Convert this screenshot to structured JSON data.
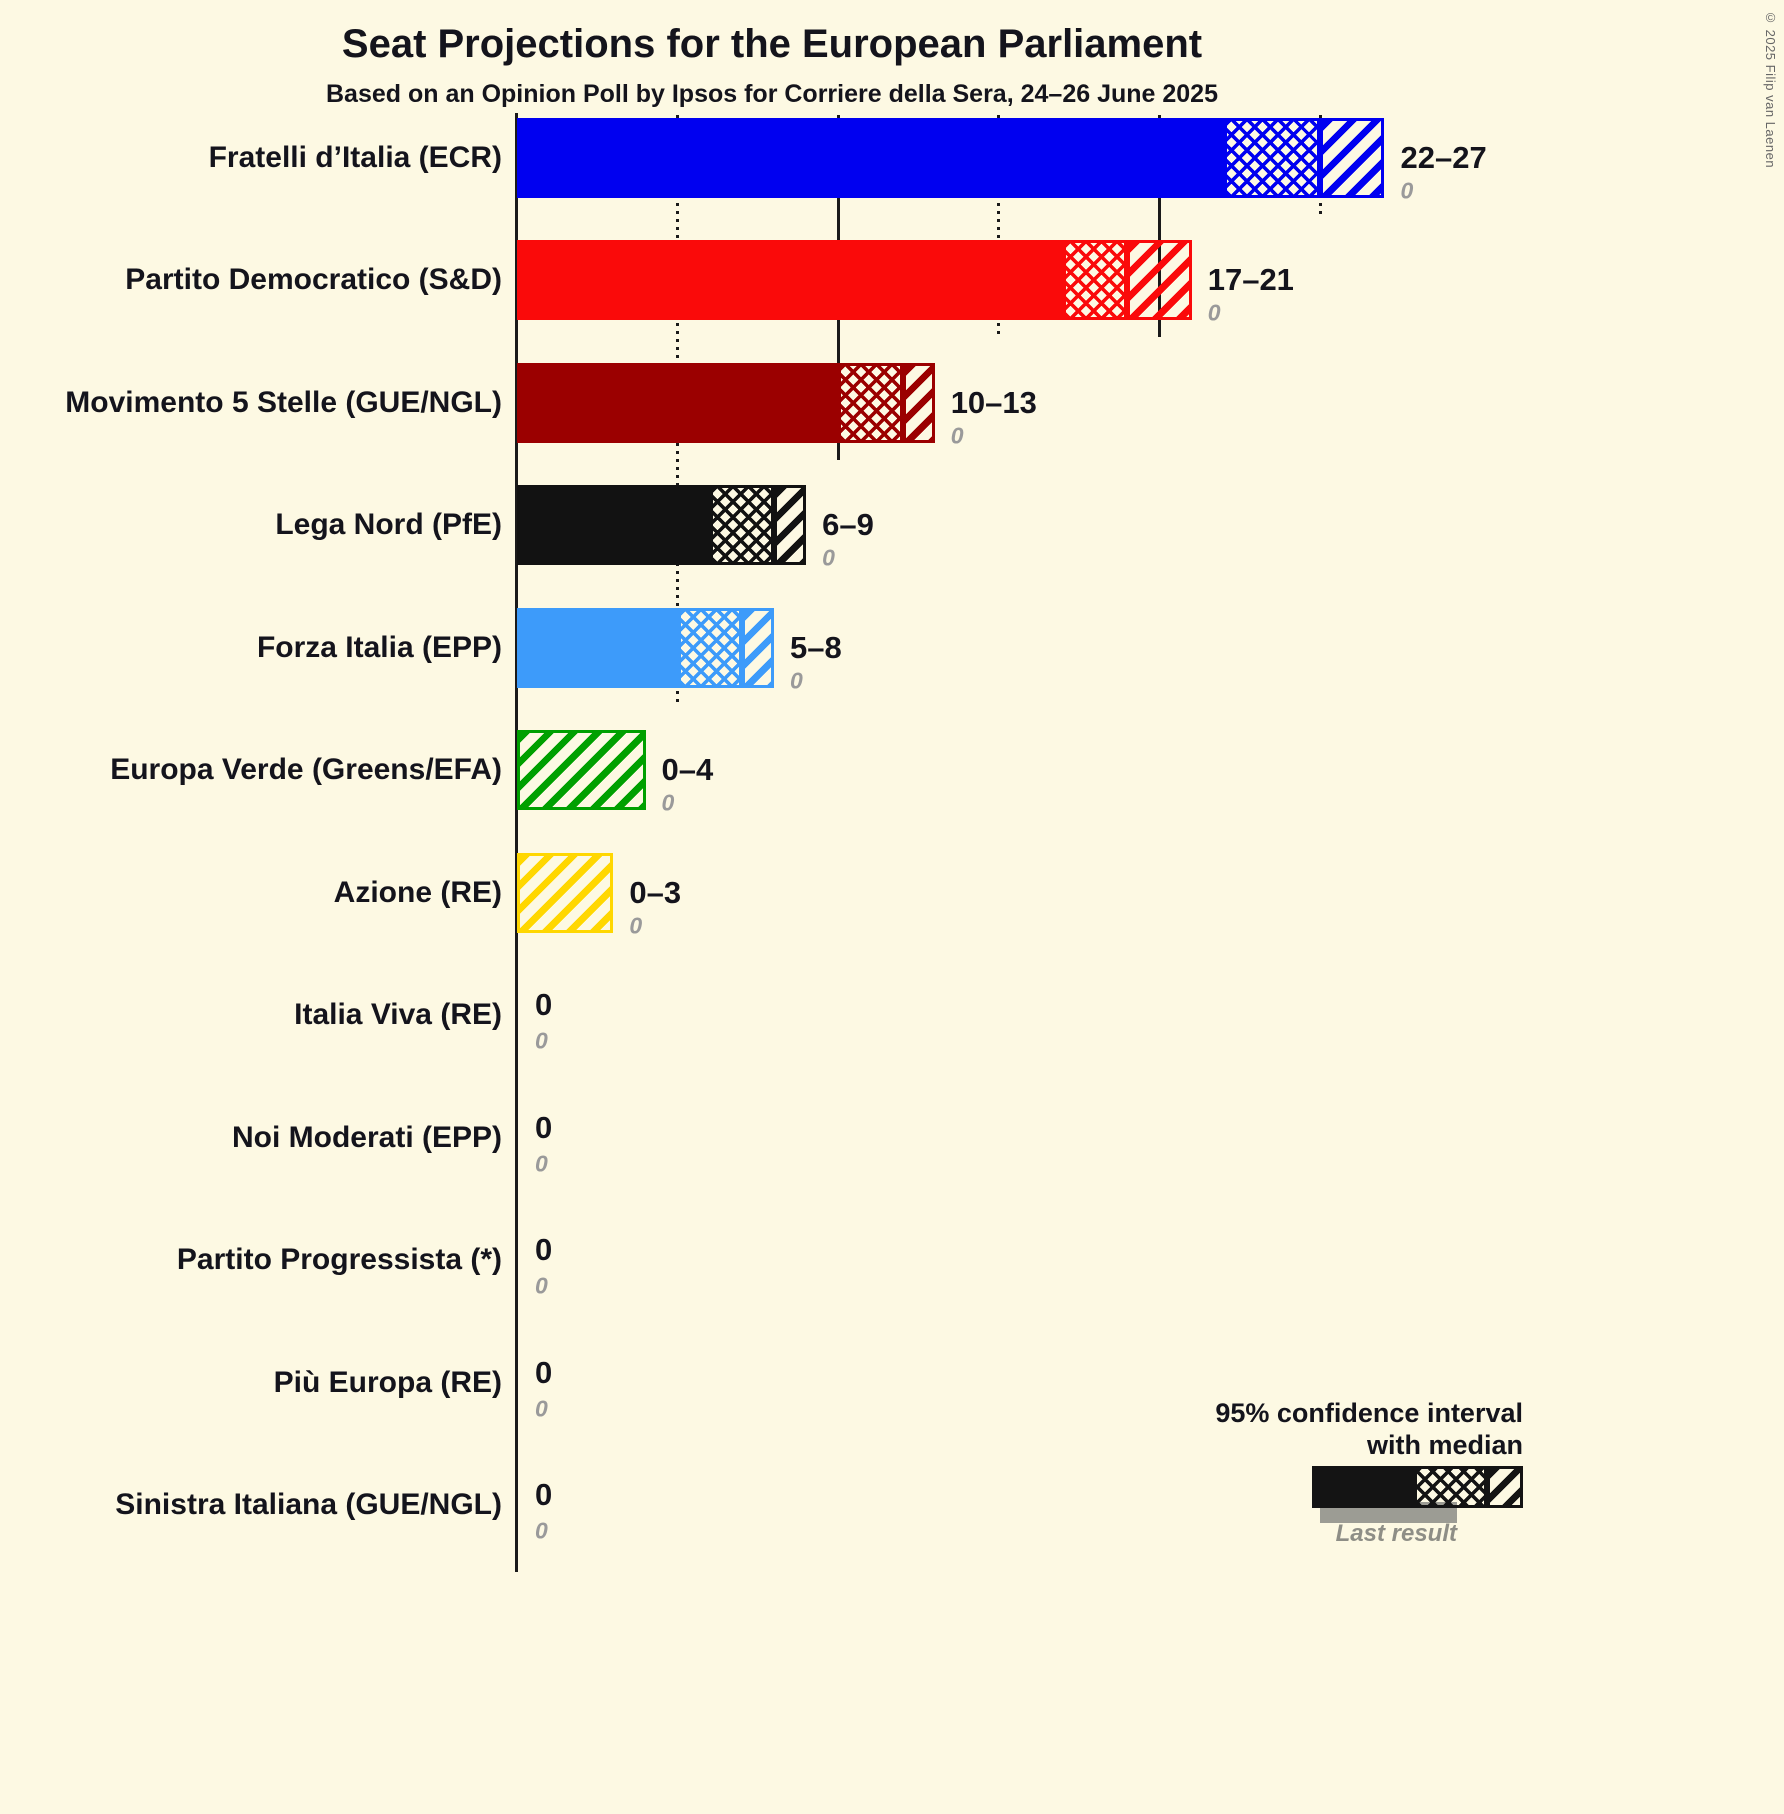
{
  "title": "Seat Projections for the European Parliament",
  "subtitle": "Based on an Opinion Poll by Ipsos for Corriere della Sera, 24–26 June 2025",
  "copyright": "© 2025 Filip van Laenen",
  "legend": {
    "ci_line1": "95% confidence interval",
    "ci_line2": "with median",
    "last_result_label": "Last result"
  },
  "chart_data": {
    "type": "bar",
    "orientation": "horizontal",
    "title": "Seat Projections for the European Parliament",
    "subtitle": "Based on an Opinion Poll by Ipsos for Corriere della Sera, 24–26 June 2025",
    "x_unit": "seats",
    "x_axis": {
      "min": 0,
      "max": 27,
      "gridlines": [
        {
          "seats": 5,
          "style": "dotted"
        },
        {
          "seats": 10,
          "style": "solid"
        },
        {
          "seats": 15,
          "style": "dotted"
        },
        {
          "seats": 20,
          "style": "solid"
        },
        {
          "seats": 25,
          "style": "dotted"
        }
      ]
    },
    "parties": [
      {
        "label": "Fratelli d’Italia (ECR)",
        "color": "#0000f0",
        "ci_low": 22,
        "median": 25,
        "ci_high": 27,
        "range_label": "22–27",
        "last_result": 0,
        "last_result_label": "0"
      },
      {
        "label": "Partito Democratico (S&D)",
        "color": "#fa0a0a",
        "ci_low": 17,
        "median": 19,
        "ci_high": 21,
        "range_label": "17–21",
        "last_result": 0,
        "last_result_label": "0"
      },
      {
        "label": "Movimento 5 Stelle (GUE/NGL)",
        "color": "#9b0000",
        "ci_low": 10,
        "median": 12,
        "ci_high": 13,
        "range_label": "10–13",
        "last_result": 0,
        "last_result_label": "0"
      },
      {
        "label": "Lega Nord (PfE)",
        "color": "#121212",
        "ci_low": 6,
        "median": 8,
        "ci_high": 9,
        "range_label": "6–9",
        "last_result": 0,
        "last_result_label": "0"
      },
      {
        "label": "Forza Italia (EPP)",
        "color": "#3d9bfa",
        "ci_low": 5,
        "median": 7,
        "ci_high": 8,
        "range_label": "5–8",
        "last_result": 0,
        "last_result_label": "0"
      },
      {
        "label": "Europa Verde (Greens/EFA)",
        "color": "#00a000",
        "ci_low": 0,
        "median": 0,
        "ci_high": 4,
        "range_label": "0–4",
        "last_result": 0,
        "last_result_label": "0"
      },
      {
        "label": "Azione (RE)",
        "color": "#ffd700",
        "ci_low": 0,
        "median": 0,
        "ci_high": 3,
        "range_label": "0–3",
        "last_result": 0,
        "last_result_label": "0"
      },
      {
        "label": "Italia Viva (RE)",
        "ci_low": 0,
        "median": 0,
        "ci_high": 0,
        "range_label": "0",
        "last_result": 0,
        "last_result_label": "0"
      },
      {
        "label": "Noi Moderati (EPP)",
        "ci_low": 0,
        "median": 0,
        "ci_high": 0,
        "range_label": "0",
        "last_result": 0,
        "last_result_label": "0"
      },
      {
        "label": "Partito Progressista (*)",
        "ci_low": 0,
        "median": 0,
        "ci_high": 0,
        "range_label": "0",
        "last_result": 0,
        "last_result_label": "0"
      },
      {
        "label": "Più Europa (RE)",
        "ci_low": 0,
        "median": 0,
        "ci_high": 0,
        "range_label": "0",
        "last_result": 0,
        "last_result_label": "0"
      },
      {
        "label": "Sinistra Italiana (GUE/NGL)",
        "ci_low": 0,
        "median": 0,
        "ci_high": 0,
        "range_label": "0",
        "last_result": 0,
        "last_result_label": "0"
      }
    ]
  }
}
